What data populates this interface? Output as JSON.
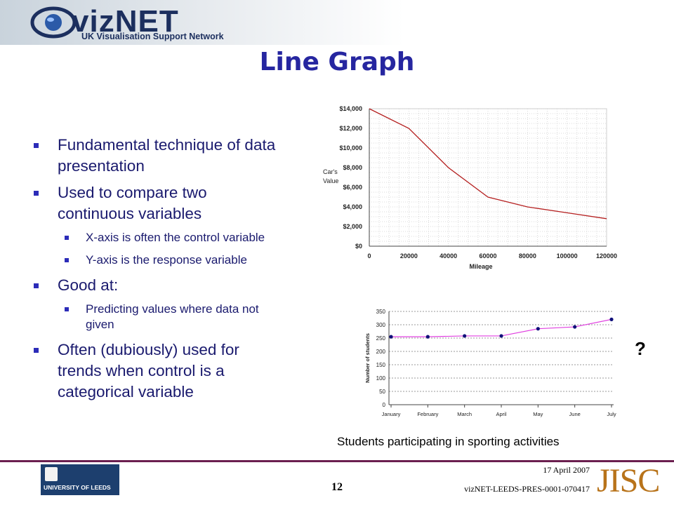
{
  "header": {
    "logo_word": "vizNET",
    "logo_sub": "UK Visualisation Support Network"
  },
  "slide": {
    "title": "Line Graph",
    "bullets": [
      {
        "level": 1,
        "text": "Fundamental technique of data presentation"
      },
      {
        "level": 1,
        "text": "Used to compare two continuous variables"
      },
      {
        "level": 2,
        "text": "X-axis is often the control variable"
      },
      {
        "level": 2,
        "text": "Y-axis is the response variable"
      },
      {
        "level": 1,
        "text": "Good at:"
      },
      {
        "level": 2,
        "text": "Predicting values where data not given"
      },
      {
        "level": 1,
        "text": "Often (dubiously) used for trends when control is a categorical variable"
      }
    ],
    "caption": "Students participating in sporting activities",
    "question_mark": "?"
  },
  "chart_data": [
    {
      "type": "line",
      "title": "",
      "xlabel": "Mileage",
      "ylabel": "Car's Value",
      "x_ticks": [
        "0",
        "20000",
        "40000",
        "60000",
        "80000",
        "100000",
        "120000"
      ],
      "y_ticks": [
        "$0",
        "$2,000",
        "$4,000",
        "$6,000",
        "$8,000",
        "$10,000",
        "$12,000",
        "$14,000"
      ],
      "xlim": [
        0,
        120000
      ],
      "ylim": [
        0,
        14000
      ],
      "grid": true,
      "series": [
        {
          "x": [
            0,
            20000,
            40000,
            60000,
            80000,
            100000,
            120000
          ],
          "y": [
            14000,
            12000,
            8000,
            5000,
            4000,
            3400,
            2800
          ]
        }
      ],
      "line_color": "#b52020"
    },
    {
      "type": "line",
      "title": "",
      "xlabel": "",
      "ylabel": "Number of students",
      "categories": [
        "January",
        "February",
        "March",
        "April",
        "May",
        "June",
        "July"
      ],
      "y_ticks": [
        "0",
        "50",
        "100",
        "150",
        "200",
        "250",
        "300",
        "350"
      ],
      "ylim": [
        0,
        350
      ],
      "grid": true,
      "series": [
        {
          "values": [
            255,
            255,
            258,
            258,
            285,
            292,
            320
          ]
        }
      ],
      "line_color": "#e040e0",
      "marker_color": "#10107a"
    }
  ],
  "footer": {
    "university": "UNIVERSITY OF LEEDS",
    "page_number": "12",
    "date": "17 April 2007",
    "reference": "vizNET-LEEDS-PRES-0001-070417",
    "jisc": "JISC"
  }
}
